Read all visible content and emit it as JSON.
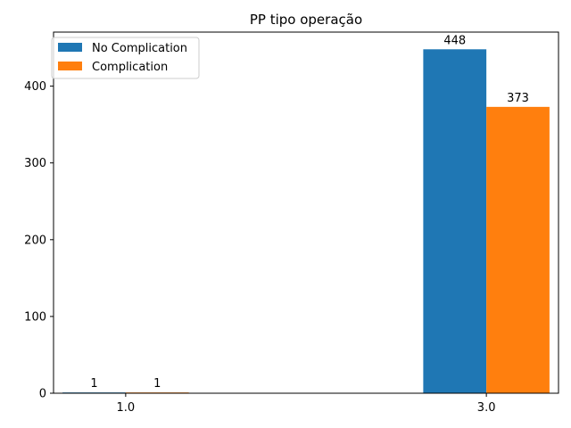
{
  "chart_data": {
    "type": "bar",
    "title": "PP tipo operação",
    "xlabel": "",
    "ylabel": "",
    "categories": [
      "1.0",
      "3.0"
    ],
    "series": [
      {
        "name": "No Complication",
        "values": [
          1,
          448
        ],
        "color": "#1f77b4"
      },
      {
        "name": "Complication",
        "values": [
          1,
          373
        ],
        "color": "#ff7f0e"
      }
    ],
    "ylim": [
      0,
      470.4
    ],
    "yticks": [
      0,
      100,
      200,
      300,
      400
    ],
    "xlim": [
      0.6,
      3.4
    ],
    "bar_width_data": 0.35,
    "legend": "upper-left",
    "grid": false
  }
}
